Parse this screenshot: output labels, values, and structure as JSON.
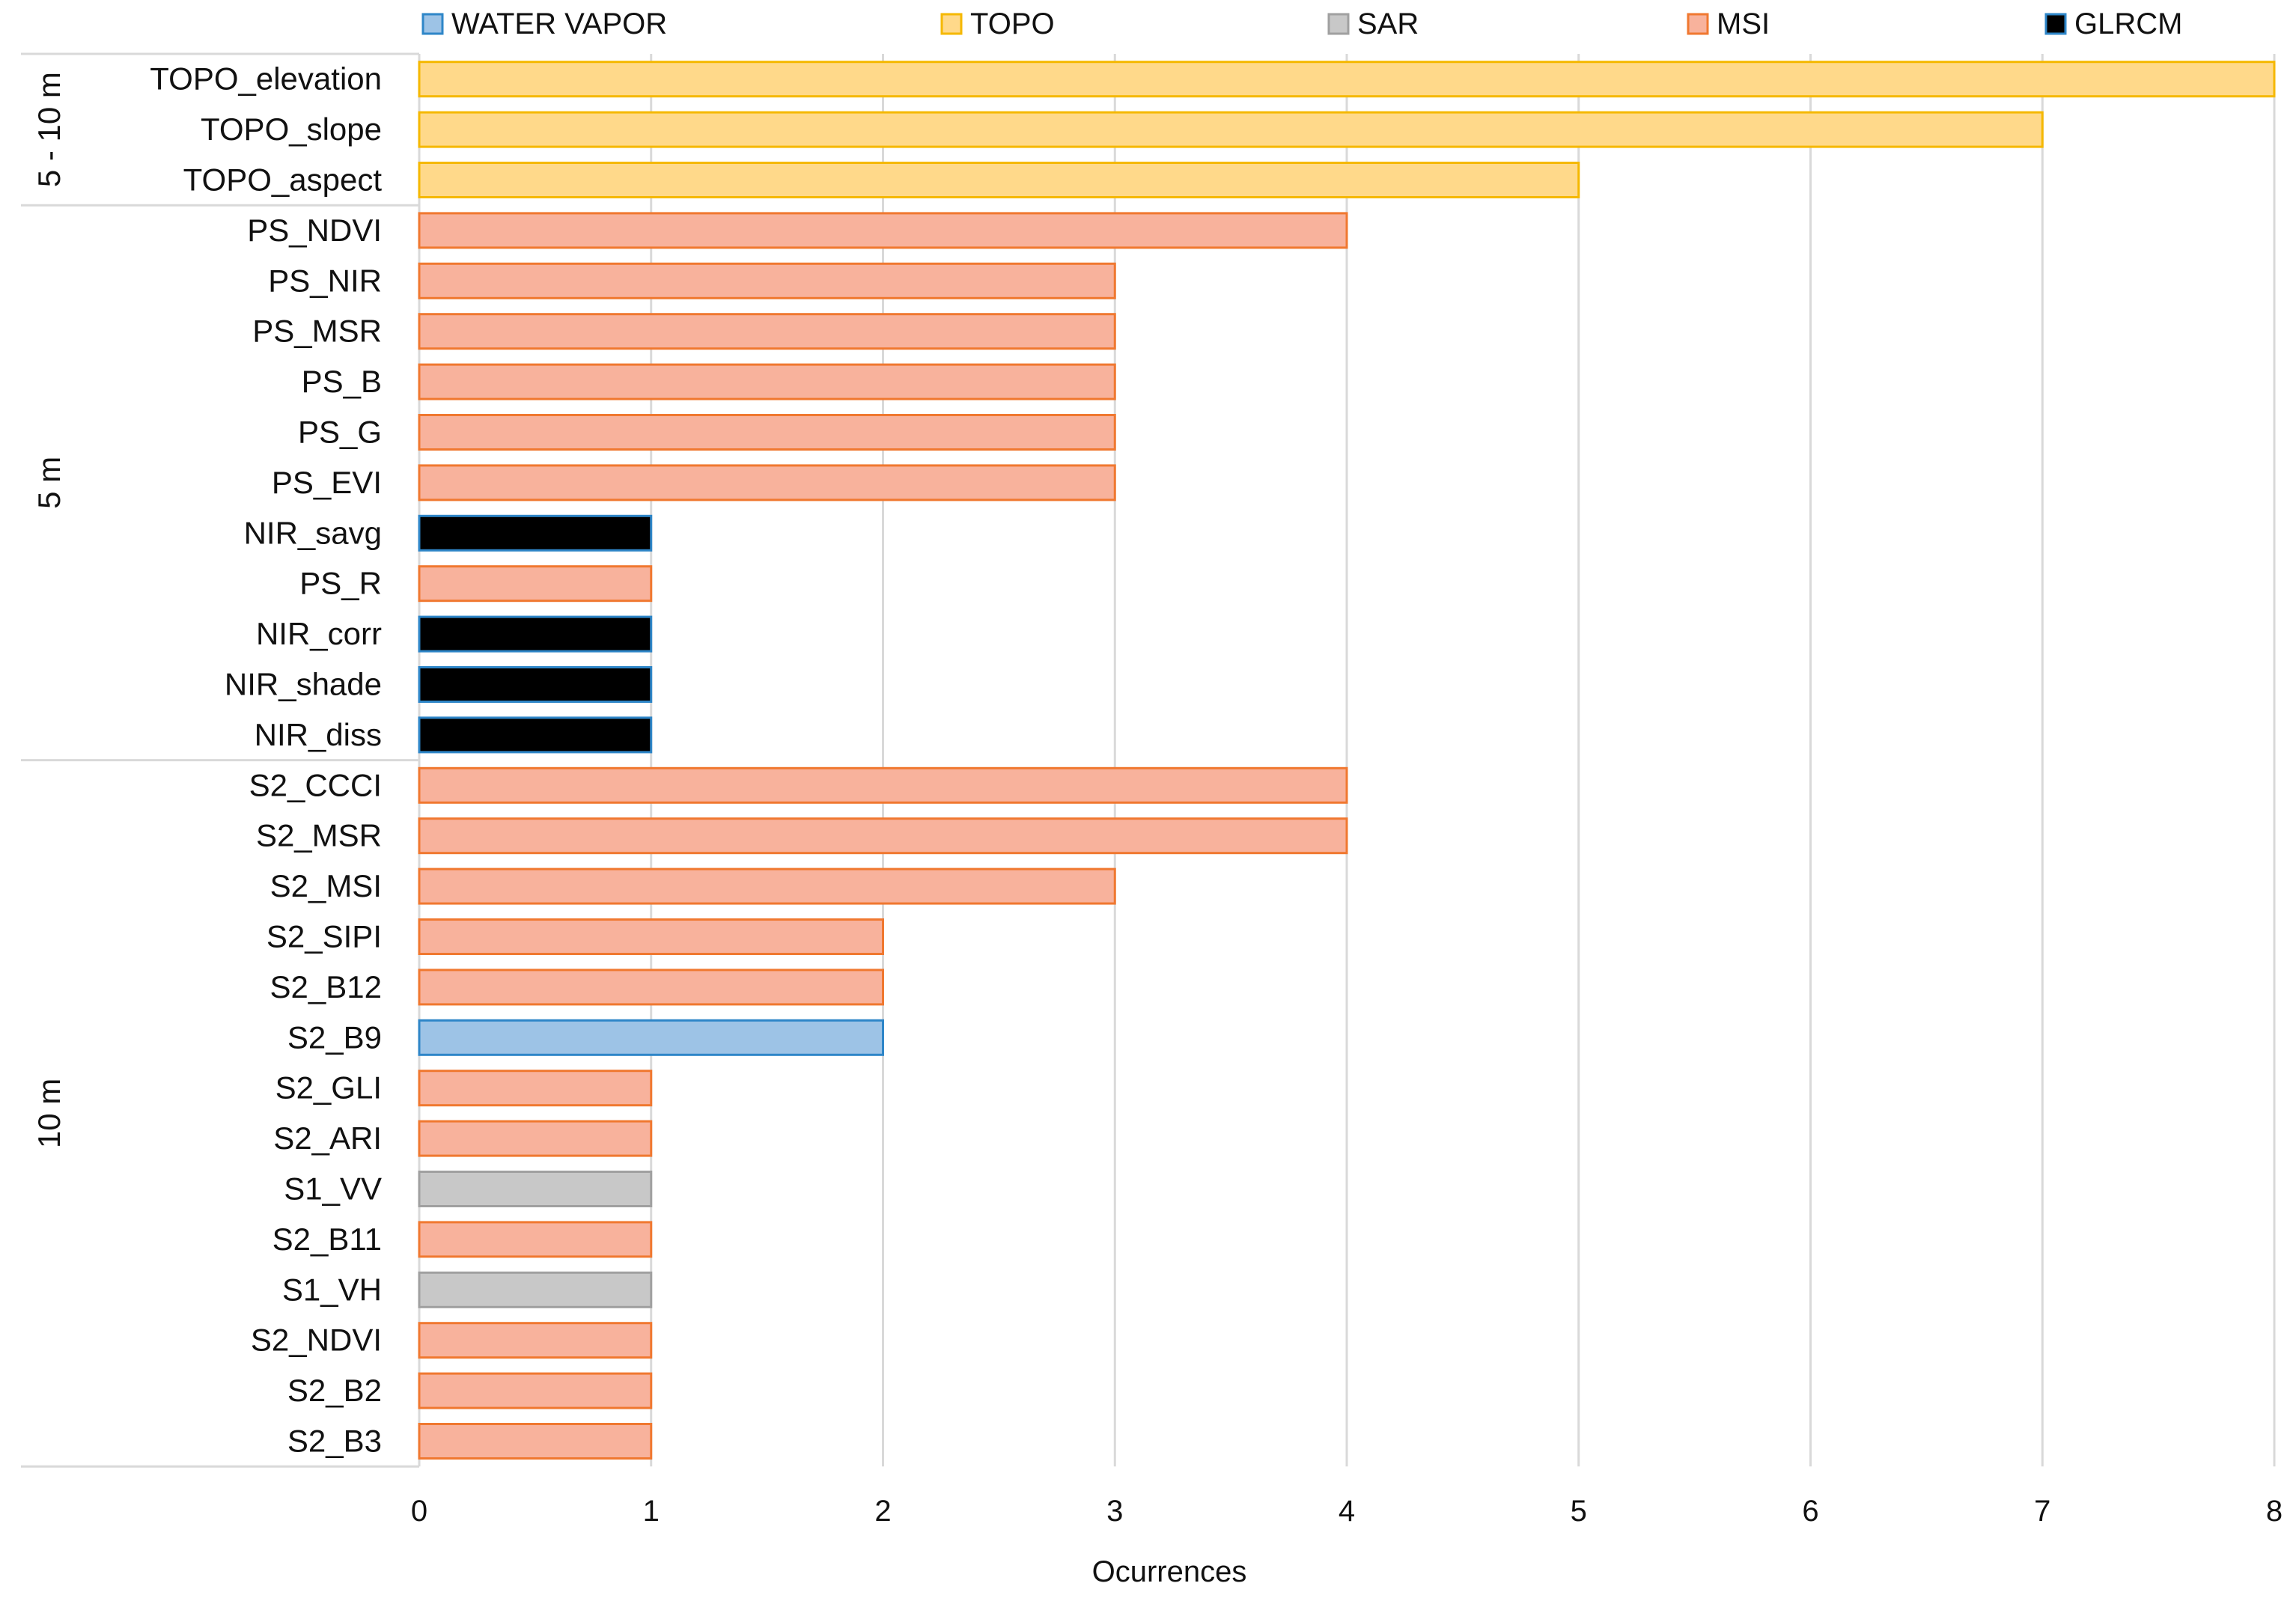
{
  "chart_data": {
    "type": "bar",
    "orientation": "horizontal",
    "xlabel": "Ocurrences",
    "ylabel": "",
    "xlim": [
      0,
      8
    ],
    "xticks": [
      0,
      1,
      2,
      3,
      4,
      5,
      6,
      7,
      8
    ],
    "grid": true,
    "legend_position": "top",
    "legend": [
      {
        "name": "WATER VAPOR",
        "color": "#9DC3E6",
        "border": "#2E86C8"
      },
      {
        "name": "TOPO",
        "color": "#FFD98A",
        "border": "#F5B800"
      },
      {
        "name": "SAR",
        "color": "#C8C8C8",
        "border": "#A0A0A0"
      },
      {
        "name": "MSI",
        "color": "#F8B29C",
        "border": "#F07830"
      },
      {
        "name": "GLRCM",
        "color": "#000000",
        "border": "#2E86C8"
      }
    ],
    "groups": [
      {
        "name": "5 - 10 m",
        "bars": [
          {
            "label": "TOPO_elevation",
            "value": 8,
            "category": "TOPO"
          },
          {
            "label": "TOPO_slope",
            "value": 7,
            "category": "TOPO"
          },
          {
            "label": "TOPO_aspect",
            "value": 5,
            "category": "TOPO"
          }
        ]
      },
      {
        "name": "5 m",
        "bars": [
          {
            "label": "PS_NDVI",
            "value": 4,
            "category": "MSI"
          },
          {
            "label": "PS_NIR",
            "value": 3,
            "category": "MSI"
          },
          {
            "label": "PS_MSR",
            "value": 3,
            "category": "MSI"
          },
          {
            "label": "PS_B",
            "value": 3,
            "category": "MSI"
          },
          {
            "label": "PS_G",
            "value": 3,
            "category": "MSI"
          },
          {
            "label": "PS_EVI",
            "value": 3,
            "category": "MSI"
          },
          {
            "label": "NIR_savg",
            "value": 1,
            "category": "GLRCM"
          },
          {
            "label": "PS_R",
            "value": 1,
            "category": "MSI"
          },
          {
            "label": "NIR_corr",
            "value": 1,
            "category": "GLRCM"
          },
          {
            "label": "NIR_shade",
            "value": 1,
            "category": "GLRCM"
          },
          {
            "label": "NIR_diss",
            "value": 1,
            "category": "GLRCM"
          }
        ]
      },
      {
        "name": "10 m",
        "bars": [
          {
            "label": "S2_CCCI",
            "value": 4,
            "category": "MSI"
          },
          {
            "label": "S2_MSR",
            "value": 4,
            "category": "MSI"
          },
          {
            "label": "S2_MSI",
            "value": 3,
            "category": "MSI"
          },
          {
            "label": "S2_SIPI",
            "value": 2,
            "category": "MSI"
          },
          {
            "label": "S2_B12",
            "value": 2,
            "category": "MSI"
          },
          {
            "label": "S2_B9",
            "value": 2,
            "category": "WATER VAPOR"
          },
          {
            "label": "S2_GLI",
            "value": 1,
            "category": "MSI"
          },
          {
            "label": "S2_ARI",
            "value": 1,
            "category": "MSI"
          },
          {
            "label": "S1_VV",
            "value": 1,
            "category": "SAR"
          },
          {
            "label": "S2_B11",
            "value": 1,
            "category": "MSI"
          },
          {
            "label": "S1_VH",
            "value": 1,
            "category": "SAR"
          },
          {
            "label": "S2_NDVI",
            "value": 1,
            "category": "MSI"
          },
          {
            "label": "S2_B2",
            "value": 1,
            "category": "MSI"
          },
          {
            "label": "S2_B3",
            "value": 1,
            "category": "MSI"
          }
        ]
      }
    ]
  }
}
